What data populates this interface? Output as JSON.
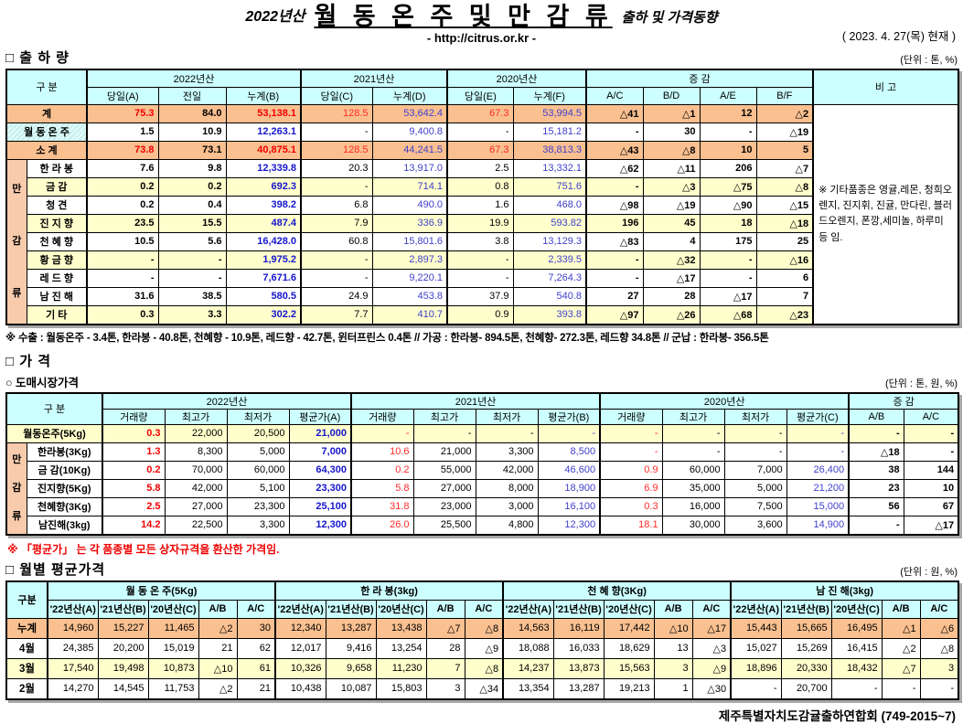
{
  "title": {
    "year_label": "2022년산",
    "main": "월 동 온 주 및 만 감 류",
    "sub": "출하 및 가격동향",
    "url": "- http://citrus.or.kr -",
    "date": "( 2023.  4. 27(목) 현재 )"
  },
  "shipment": {
    "heading": "□ 출 하 량",
    "unit": "(단위 : 톤, %)",
    "col_group_label": "구      분",
    "year_groups": [
      "2022년산",
      "2021년산",
      "2020년산"
    ],
    "change_label": "증      감",
    "remark_label": "비  고",
    "sub_headers": [
      "당일(A)",
      "전일",
      "누계(B)",
      "당일(C)",
      "누계(D)",
      "당일(E)",
      "누계(F)",
      "A/C",
      "B/D",
      "A/E",
      "B/F"
    ],
    "group_label": "만감류",
    "remark": "※ 기타품종은 영귤,레몬, 청희오렌지, 진지휘, 진귤, 만다린, 블러드오렌지, 폰깡,세미놀, 하루미 등 임.",
    "rows": [
      {
        "label": "계",
        "kind": "total",
        "span2": true,
        "cells": [
          "75.3",
          "84.0",
          "53,138.1",
          "128.5",
          "53,642.4",
          "67.3",
          "53,994.5",
          "△41",
          "△1",
          "12",
          "△2"
        ]
      },
      {
        "label": "월 동 온 주",
        "kind": "section",
        "span2": true,
        "cells": [
          "1.5",
          "10.9",
          "12,263.1",
          "-",
          "9,400.8",
          "-",
          "15,181.2",
          "-",
          "30",
          "-",
          "△19"
        ]
      },
      {
        "label": "소    계",
        "kind": "total",
        "span2": true,
        "cells": [
          "73.8",
          "73.1",
          "40,875.1",
          "128.5",
          "44,241.5",
          "67.3",
          "38,813.3",
          "△43",
          "△8",
          "10",
          "5"
        ]
      },
      {
        "label": "한 라 봉",
        "kind": "item",
        "cells": [
          "7.6",
          "9.8",
          "12,339.8",
          "20.3",
          "13,917.0",
          "2.5",
          "13,332.1",
          "△62",
          "△11",
          "206",
          "△7"
        ]
      },
      {
        "label": "금    감",
        "kind": "item",
        "cells": [
          "0.2",
          "0.2",
          "692.3",
          "-",
          "714.1",
          "0.8",
          "751.6",
          "-",
          "△3",
          "△75",
          "△8"
        ]
      },
      {
        "label": "청    견",
        "kind": "item",
        "cells": [
          "0.2",
          "0.4",
          "398.2",
          "6.8",
          "490.0",
          "1.6",
          "468.0",
          "△98",
          "△19",
          "△90",
          "△15"
        ]
      },
      {
        "label": "진 지 향",
        "kind": "item",
        "cells": [
          "23.5",
          "15.5",
          "487.4",
          "7.9",
          "336.9",
          "19.9",
          "593.82",
          "196",
          "45",
          "18",
          "△18"
        ]
      },
      {
        "label": "천 혜 향",
        "kind": "item",
        "cells": [
          "10.5",
          "5.6",
          "16,428.0",
          "60.8",
          "15,801.6",
          "3.8",
          "13,129.3",
          "△83",
          "4",
          "175",
          "25"
        ]
      },
      {
        "label": "황 금 향",
        "kind": "item",
        "cells": [
          "-",
          "-",
          "1,975.2",
          "-",
          "2,897.3",
          "-",
          "2,339.5",
          "-",
          "△32",
          "-",
          "△16"
        ]
      },
      {
        "label": "레 드 향",
        "kind": "item",
        "cells": [
          "-",
          "-",
          "7,671.6",
          "-",
          "9,220.1",
          "-",
          "7,264.3",
          "-",
          "△17",
          "-",
          "6"
        ]
      },
      {
        "label": "남 진 해",
        "kind": "item",
        "cells": [
          "31.6",
          "38.5",
          "580.5",
          "24.9",
          "453.8",
          "37.9",
          "540.8",
          "27",
          "28",
          "△17",
          "7"
        ]
      },
      {
        "label": "기    타",
        "kind": "item",
        "cells": [
          "0.3",
          "3.3",
          "302.2",
          "7.7",
          "410.7",
          "0.9",
          "393.8",
          "△97",
          "△26",
          "△68",
          "△23"
        ]
      }
    ],
    "footnote": "※ 수출 : 월동온주 - 3.4톤, 한라봉 - 40.8톤, 천혜향 - 10.9톤, 레드향 - 42.7톤, 윈터프린스 0.4톤  //  가공  : 한라봉- 894.5톤, 천혜향- 272.3톤, 레드향 34.8톤  //  군납 : 한라봉- 356.5톤"
  },
  "price": {
    "heading": "□ 가      격",
    "subheading": "○ 도매시장가격",
    "unit": "(단위 : 톤, 원, %)",
    "col_group_label": "구    분",
    "year_groups": [
      "2022년산",
      "2021년산",
      "2020년산"
    ],
    "change_label": "증  감",
    "sub_headers": [
      "거래량",
      "최고가",
      "최저가",
      "평균가(A)",
      "거래량",
      "최고가",
      "최저가",
      "평균가(B)",
      "거래량",
      "최고가",
      "최저가",
      "평균가(C)",
      "A/B",
      "A/C"
    ],
    "group_label": "만감류",
    "rows": [
      {
        "label": "월동온주(5Kg)",
        "kind": "section",
        "span2": true,
        "shaded": true,
        "cells": [
          "0.3",
          "22,000",
          "20,500",
          "21,000",
          "-",
          "-",
          "-",
          "-",
          "-",
          "-",
          "-",
          "-",
          "-",
          "-"
        ]
      },
      {
        "label": "한라봉(3Kg)",
        "kind": "item",
        "cells": [
          "1.3",
          "8,300",
          "5,000",
          "7,000",
          "10.6",
          "21,000",
          "3,300",
          "8,500",
          "-",
          "-",
          "-",
          "-",
          "△18",
          "-"
        ]
      },
      {
        "label": "금 감(10Kg)",
        "kind": "item",
        "cells": [
          "0.2",
          "70,000",
          "60,000",
          "64,300",
          "0.2",
          "55,000",
          "42,000",
          "46,600",
          "0.9",
          "60,000",
          "7,000",
          "26,400",
          "38",
          "144"
        ]
      },
      {
        "label": "진지향(5Kg)",
        "kind": "item",
        "cells": [
          "5.8",
          "42,000",
          "5,100",
          "23,300",
          "5.8",
          "27,000",
          "8,000",
          "18,900",
          "6.9",
          "35,000",
          "5,000",
          "21,200",
          "23",
          "10"
        ]
      },
      {
        "label": "천혜향(3Kg)",
        "kind": "item",
        "cells": [
          "2.5",
          "27,000",
          "23,300",
          "25,100",
          "31.8",
          "23,000",
          "3,000",
          "16,100",
          "0.3",
          "16,000",
          "7,500",
          "15,000",
          "56",
          "67"
        ]
      },
      {
        "label": "남진해(3kg)",
        "kind": "item",
        "cells": [
          "14.2",
          "22,500",
          "3,300",
          "12,300",
          "26.0",
          "25,500",
          "4,800",
          "12,300",
          "18.1",
          "30,000",
          "3,600",
          "14,900",
          "-",
          "△17"
        ]
      }
    ],
    "note": "※  「평균가」 는 각 품종별 모든 상자규격을 환산한 가격임."
  },
  "monthly": {
    "heading": "□ 월별 평균가격",
    "unit": "(단위 : 원, %)",
    "col_group_label": "구분",
    "groups": [
      "월 동 온 주(5Kg)",
      "한  라  봉(3kg)",
      "천 혜 향(3Kg)",
      "남 진 해(3kg)"
    ],
    "sub_headers": [
      "'22년산(A)",
      "'21년산(B)",
      "'20년산(C)",
      "A/B",
      "A/C"
    ],
    "rows": [
      {
        "label": "누계",
        "kind": "total",
        "cells": [
          "14,960",
          "15,227",
          "11,465",
          "△2",
          "30",
          "12,340",
          "13,287",
          "13,438",
          "△7",
          "△8",
          "14,563",
          "16,119",
          "17,442",
          "△10",
          "△17",
          "15,443",
          "15,665",
          "16,495",
          "△1",
          "△6"
        ]
      },
      {
        "label": "4월",
        "kind": "item",
        "cells": [
          "24,385",
          "20,200",
          "15,019",
          "21",
          "62",
          "12,017",
          "9,416",
          "13,254",
          "28",
          "△9",
          "18,088",
          "16,033",
          "18,629",
          "13",
          "△3",
          "15,027",
          "15,269",
          "16,415",
          "△2",
          "△8"
        ]
      },
      {
        "label": "3월",
        "kind": "item",
        "cells": [
          "17,540",
          "19,498",
          "10,873",
          "△10",
          "61",
          "10,326",
          "9,658",
          "11,230",
          "7",
          "△8",
          "14,237",
          "13,873",
          "15,563",
          "3",
          "△9",
          "18,896",
          "20,330",
          "18,432",
          "△7",
          "3"
        ]
      },
      {
        "label": "2월",
        "kind": "item",
        "cells": [
          "14,270",
          "14,545",
          "11,753",
          "△2",
          "21",
          "10,438",
          "10,087",
          "15,803",
          "3",
          "△34",
          "13,354",
          "13,287",
          "19,213",
          "1",
          "△30",
          "-",
          "20,700",
          "-",
          "-",
          "-"
        ]
      }
    ]
  },
  "footer": "제주특별자치도감귤출하연합회 (749-2015~7)"
}
